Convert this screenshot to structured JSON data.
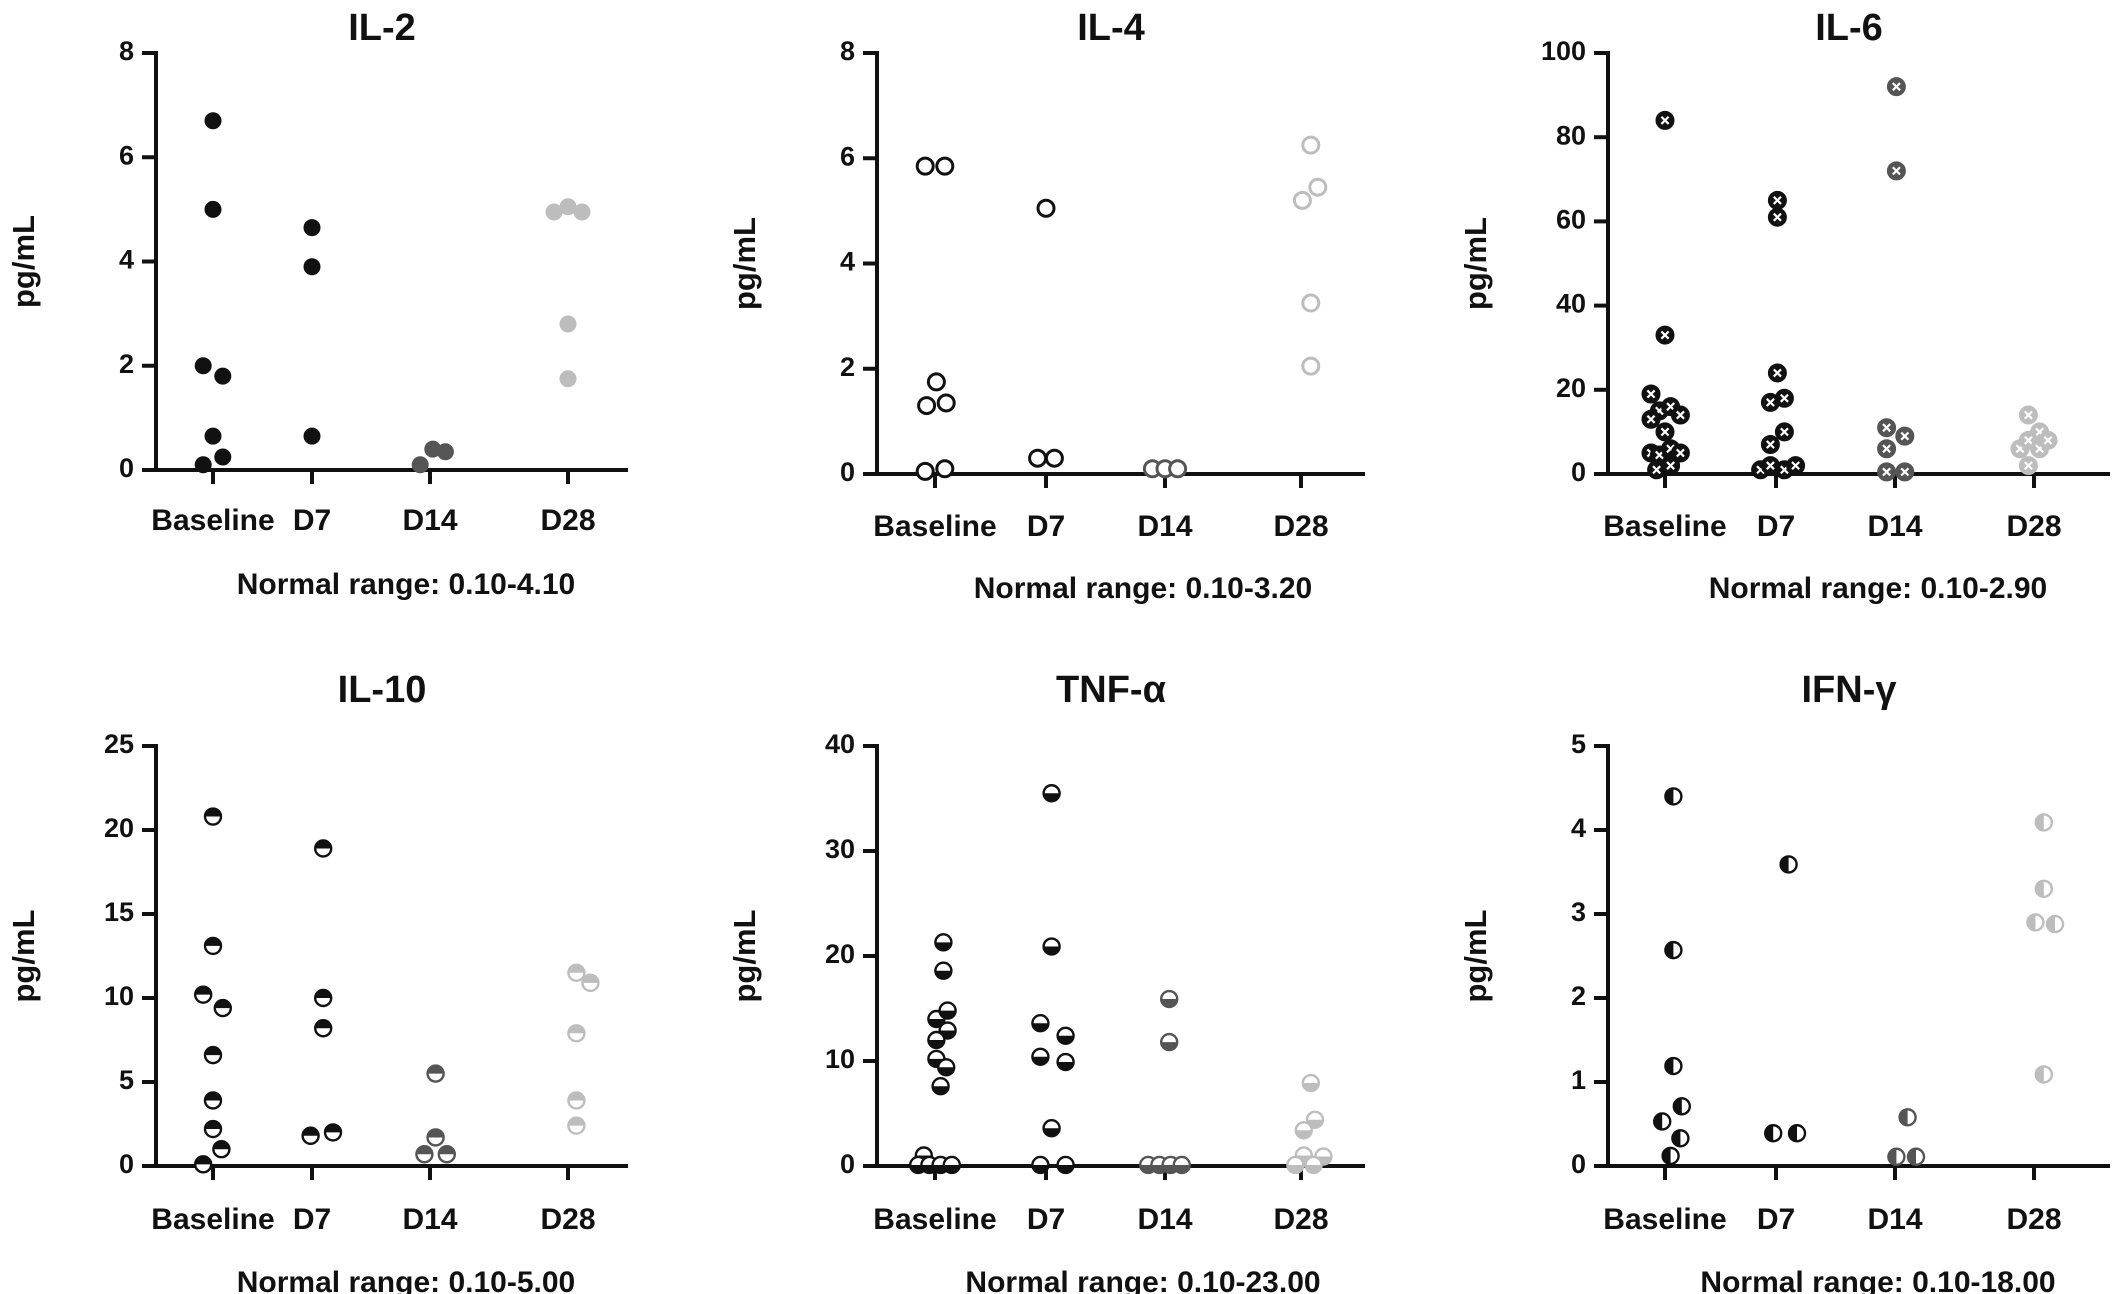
{
  "colors": {
    "Baseline": "#111111",
    "D7": "#111111",
    "D14": "#555555",
    "D28": "#bdbdbd"
  },
  "chart_data": [
    {
      "type": "scatter",
      "title": "IL-2",
      "ylabel": "pg/mL",
      "categories": [
        "Baseline",
        "D7",
        "D14",
        "D28"
      ],
      "ylim": [
        0,
        8
      ],
      "yticks": [
        0,
        2,
        4,
        6,
        8
      ],
      "marker": "filled",
      "note": "Normal range: 0.10-4.10",
      "points": [
        {
          "cat": "Baseline",
          "dx": 0,
          "y": 6.7
        },
        {
          "cat": "Baseline",
          "dx": 0,
          "y": 5.0
        },
        {
          "cat": "Baseline",
          "dx": -0.35,
          "y": 2.0
        },
        {
          "cat": "Baseline",
          "dx": 0.35,
          "y": 1.8
        },
        {
          "cat": "Baseline",
          "dx": 0,
          "y": 0.65
        },
        {
          "cat": "Baseline",
          "dx": 0.35,
          "y": 0.25
        },
        {
          "cat": "Baseline",
          "dx": -0.35,
          "y": 0.1
        },
        {
          "cat": "D7",
          "dx": 0,
          "y": 4.65
        },
        {
          "cat": "D7",
          "dx": 0,
          "y": 3.9
        },
        {
          "cat": "D7",
          "dx": 0,
          "y": 0.65
        },
        {
          "cat": "D14",
          "dx": -0.35,
          "y": 0.1
        },
        {
          "cat": "D14",
          "dx": 0.1,
          "y": 0.4
        },
        {
          "cat": "D14",
          "dx": 0.55,
          "y": 0.35
        },
        {
          "cat": "D28",
          "dx": -0.5,
          "y": 4.95
        },
        {
          "cat": "D28",
          "dx": 0,
          "y": 5.05
        },
        {
          "cat": "D28",
          "dx": 0.5,
          "y": 4.95
        },
        {
          "cat": "D28",
          "dx": 0,
          "y": 2.8
        },
        {
          "cat": "D28",
          "dx": 0,
          "y": 1.75
        }
      ]
    },
    {
      "type": "scatter",
      "title": "IL-4",
      "ylabel": "pg/mL",
      "categories": [
        "Baseline",
        "D7",
        "D14",
        "D28"
      ],
      "ylim": [
        0,
        8
      ],
      "yticks": [
        0,
        2,
        4,
        6,
        8
      ],
      "marker": "open",
      "note": "Normal range: 0.10-3.20",
      "points": [
        {
          "cat": "Baseline",
          "dx": -0.35,
          "y": 5.85
        },
        {
          "cat": "Baseline",
          "dx": 0.35,
          "y": 5.85
        },
        {
          "cat": "Baseline",
          "dx": 0.05,
          "y": 1.75
        },
        {
          "cat": "Baseline",
          "dx": -0.3,
          "y": 1.3
        },
        {
          "cat": "Baseline",
          "dx": 0.4,
          "y": 1.35
        },
        {
          "cat": "Baseline",
          "dx": -0.35,
          "y": 0.05
        },
        {
          "cat": "Baseline",
          "dx": 0.35,
          "y": 0.1
        },
        {
          "cat": "D7",
          "dx": 0,
          "y": 5.05
        },
        {
          "cat": "D7",
          "dx": -0.3,
          "y": 0.3
        },
        {
          "cat": "D7",
          "dx": 0.3,
          "y": 0.3
        },
        {
          "cat": "D14",
          "dx": -0.45,
          "y": 0.1
        },
        {
          "cat": "D14",
          "dx": 0,
          "y": 0.1
        },
        {
          "cat": "D14",
          "dx": 0.45,
          "y": 0.1
        },
        {
          "cat": "D28",
          "dx": 0.35,
          "y": 6.25
        },
        {
          "cat": "D28",
          "dx": 0.05,
          "y": 5.2
        },
        {
          "cat": "D28",
          "dx": 0.6,
          "y": 5.45
        },
        {
          "cat": "D28",
          "dx": 0.35,
          "y": 3.25
        },
        {
          "cat": "D28",
          "dx": 0.35,
          "y": 2.05
        }
      ]
    },
    {
      "type": "scatter",
      "title": "IL-6",
      "ylabel": "pg/mL",
      "categories": [
        "Baseline",
        "D7",
        "D14",
        "D28"
      ],
      "ylim": [
        0,
        100
      ],
      "yticks": [
        0,
        20,
        40,
        60,
        80,
        100
      ],
      "marker": "cross",
      "note": "Normal range: 0.10-2.90",
      "points": [
        {
          "cat": "Baseline",
          "dx": 0,
          "y": 84
        },
        {
          "cat": "Baseline",
          "dx": 0,
          "y": 33
        },
        {
          "cat": "Baseline",
          "dx": -0.5,
          "y": 19
        },
        {
          "cat": "Baseline",
          "dx": -0.2,
          "y": 15
        },
        {
          "cat": "Baseline",
          "dx": 0.2,
          "y": 16
        },
        {
          "cat": "Baseline",
          "dx": 0.55,
          "y": 14
        },
        {
          "cat": "Baseline",
          "dx": -0.5,
          "y": 13
        },
        {
          "cat": "Baseline",
          "dx": 0,
          "y": 10
        },
        {
          "cat": "Baseline",
          "dx": -0.5,
          "y": 5
        },
        {
          "cat": "Baseline",
          "dx": -0.2,
          "y": 4.5
        },
        {
          "cat": "Baseline",
          "dx": 0.2,
          "y": 6
        },
        {
          "cat": "Baseline",
          "dx": 0.55,
          "y": 5
        },
        {
          "cat": "Baseline",
          "dx": -0.3,
          "y": 1
        },
        {
          "cat": "Baseline",
          "dx": 0.2,
          "y": 2
        },
        {
          "cat": "D7",
          "dx": 0.05,
          "y": 65
        },
        {
          "cat": "D7",
          "dx": 0.05,
          "y": 61
        },
        {
          "cat": "D7",
          "dx": 0.05,
          "y": 24
        },
        {
          "cat": "D7",
          "dx": -0.2,
          "y": 17
        },
        {
          "cat": "D7",
          "dx": 0.3,
          "y": 18
        },
        {
          "cat": "D7",
          "dx": 0.3,
          "y": 10
        },
        {
          "cat": "D7",
          "dx": -0.2,
          "y": 7
        },
        {
          "cat": "D7",
          "dx": -0.55,
          "y": 1
        },
        {
          "cat": "D7",
          "dx": -0.2,
          "y": 2
        },
        {
          "cat": "D7",
          "dx": 0.3,
          "y": 1
        },
        {
          "cat": "D7",
          "dx": 0.7,
          "y": 2
        },
        {
          "cat": "D14",
          "dx": 0.05,
          "y": 92
        },
        {
          "cat": "D14",
          "dx": 0.05,
          "y": 72
        },
        {
          "cat": "D14",
          "dx": -0.3,
          "y": 11
        },
        {
          "cat": "D14",
          "dx": 0.35,
          "y": 9
        },
        {
          "cat": "D14",
          "dx": -0.3,
          "y": 6
        },
        {
          "cat": "D14",
          "dx": -0.3,
          "y": 0.5
        },
        {
          "cat": "D14",
          "dx": 0.35,
          "y": 0.5
        },
        {
          "cat": "D28",
          "dx": -0.2,
          "y": 14
        },
        {
          "cat": "D28",
          "dx": 0.2,
          "y": 10
        },
        {
          "cat": "D28",
          "dx": -0.5,
          "y": 6
        },
        {
          "cat": "D28",
          "dx": -0.2,
          "y": 8
        },
        {
          "cat": "D28",
          "dx": 0.2,
          "y": 6
        },
        {
          "cat": "D28",
          "dx": 0.5,
          "y": 8
        },
        {
          "cat": "D28",
          "dx": -0.2,
          "y": 2
        }
      ]
    },
    {
      "type": "scatter",
      "title": "IL-10",
      "ylabel": "pg/mL",
      "categories": [
        "Baseline",
        "D7",
        "D14",
        "D28"
      ],
      "ylim": [
        0,
        25
      ],
      "yticks": [
        0,
        5,
        10,
        15,
        20,
        25
      ],
      "marker": "half-top",
      "note": "Normal range: 0.10-5.00",
      "points": [
        {
          "cat": "Baseline",
          "dx": 0,
          "y": 20.8
        },
        {
          "cat": "Baseline",
          "dx": 0,
          "y": 13.1
        },
        {
          "cat": "Baseline",
          "dx": -0.35,
          "y": 10.2
        },
        {
          "cat": "Baseline",
          "dx": 0.35,
          "y": 9.4
        },
        {
          "cat": "Baseline",
          "dx": 0,
          "y": 6.6
        },
        {
          "cat": "Baseline",
          "dx": 0,
          "y": 3.9
        },
        {
          "cat": "Baseline",
          "dx": 0,
          "y": 2.2
        },
        {
          "cat": "Baseline",
          "dx": 0.3,
          "y": 1.0
        },
        {
          "cat": "Baseline",
          "dx": -0.35,
          "y": 0.1
        },
        {
          "cat": "D7",
          "dx": 0.4,
          "y": 18.9
        },
        {
          "cat": "D7",
          "dx": 0.4,
          "y": 10.0
        },
        {
          "cat": "D7",
          "dx": 0.4,
          "y": 8.2
        },
        {
          "cat": "D7",
          "dx": -0.05,
          "y": 1.8
        },
        {
          "cat": "D7",
          "dx": 0.75,
          "y": 2.0
        },
        {
          "cat": "D14",
          "dx": 0.2,
          "y": 5.5
        },
        {
          "cat": "D14",
          "dx": 0.2,
          "y": 1.7
        },
        {
          "cat": "D14",
          "dx": -0.2,
          "y": 0.7
        },
        {
          "cat": "D14",
          "dx": 0.6,
          "y": 0.7
        },
        {
          "cat": "D28",
          "dx": 0.3,
          "y": 11.5
        },
        {
          "cat": "D28",
          "dx": 0.8,
          "y": 10.9
        },
        {
          "cat": "D28",
          "dx": 0.3,
          "y": 7.9
        },
        {
          "cat": "D28",
          "dx": 0.3,
          "y": 3.9
        },
        {
          "cat": "D28",
          "dx": 0.3,
          "y": 2.4
        }
      ]
    },
    {
      "type": "scatter",
      "title": "TNF-α",
      "ylabel": "pg/mL",
      "categories": [
        "Baseline",
        "D7",
        "D14",
        "D28"
      ],
      "ylim": [
        0,
        40
      ],
      "yticks": [
        0,
        10,
        20,
        30,
        40
      ],
      "marker": "half-bottom",
      "note": "Normal range: 0.10-23.00",
      "points": [
        {
          "cat": "Baseline",
          "dx": 0.3,
          "y": 21.3
        },
        {
          "cat": "Baseline",
          "dx": 0.3,
          "y": 18.6
        },
        {
          "cat": "Baseline",
          "dx": 0.05,
          "y": 14.0
        },
        {
          "cat": "Baseline",
          "dx": 0.45,
          "y": 14.8
        },
        {
          "cat": "Baseline",
          "dx": 0.45,
          "y": 12.9
        },
        {
          "cat": "Baseline",
          "dx": 0.05,
          "y": 12.0
        },
        {
          "cat": "Baseline",
          "dx": 0.05,
          "y": 10.2
        },
        {
          "cat": "Baseline",
          "dx": 0.4,
          "y": 9.4
        },
        {
          "cat": "Baseline",
          "dx": 0.2,
          "y": 7.6
        },
        {
          "cat": "Baseline",
          "dx": -0.4,
          "y": 1.0
        },
        {
          "cat": "Baseline",
          "dx": -0.6,
          "y": 0.1
        },
        {
          "cat": "Baseline",
          "dx": -0.2,
          "y": 0.1
        },
        {
          "cat": "Baseline",
          "dx": 0.2,
          "y": 0.1
        },
        {
          "cat": "Baseline",
          "dx": 0.6,
          "y": 0.1
        },
        {
          "cat": "D7",
          "dx": 0.2,
          "y": 35.5
        },
        {
          "cat": "D7",
          "dx": 0.2,
          "y": 20.9
        },
        {
          "cat": "D7",
          "dx": -0.2,
          "y": 13.6
        },
        {
          "cat": "D7",
          "dx": 0.7,
          "y": 12.4
        },
        {
          "cat": "D7",
          "dx": -0.2,
          "y": 10.4
        },
        {
          "cat": "D7",
          "dx": 0.7,
          "y": 9.9
        },
        {
          "cat": "D7",
          "dx": 0.2,
          "y": 3.6
        },
        {
          "cat": "D7",
          "dx": -0.2,
          "y": 0.1
        },
        {
          "cat": "D7",
          "dx": 0.7,
          "y": 0.1
        },
        {
          "cat": "D14",
          "dx": 0.15,
          "y": 15.9
        },
        {
          "cat": "D14",
          "dx": 0.15,
          "y": 11.8
        },
        {
          "cat": "D14",
          "dx": -0.6,
          "y": 0.1
        },
        {
          "cat": "D14",
          "dx": -0.2,
          "y": 0.1
        },
        {
          "cat": "D14",
          "dx": 0.2,
          "y": 0.1
        },
        {
          "cat": "D14",
          "dx": 0.6,
          "y": 0.1
        },
        {
          "cat": "D28",
          "dx": 0.35,
          "y": 7.9
        },
        {
          "cat": "D28",
          "dx": 0.5,
          "y": 4.4
        },
        {
          "cat": "D28",
          "dx": 0.1,
          "y": 3.4
        },
        {
          "cat": "D28",
          "dx": 0.1,
          "y": 1.0
        },
        {
          "cat": "D28",
          "dx": 0.8,
          "y": 0.9
        },
        {
          "cat": "D28",
          "dx": -0.2,
          "y": 0.1
        },
        {
          "cat": "D28",
          "dx": 0.45,
          "y": 0.1
        }
      ]
    },
    {
      "type": "scatter",
      "title": "IFN-γ",
      "ylabel": "pg/mL",
      "categories": [
        "Baseline",
        "D7",
        "D14",
        "D28"
      ],
      "ylim": [
        0,
        5
      ],
      "yticks": [
        0,
        1,
        2,
        3,
        4,
        5
      ],
      "marker": "half-left",
      "note": "Normal range: 0.10-18.00",
      "points": [
        {
          "cat": "Baseline",
          "dx": 0.3,
          "y": 4.4
        },
        {
          "cat": "Baseline",
          "dx": 0.3,
          "y": 2.57
        },
        {
          "cat": "Baseline",
          "dx": 0.3,
          "y": 1.19
        },
        {
          "cat": "Baseline",
          "dx": 0.6,
          "y": 0.71
        },
        {
          "cat": "Baseline",
          "dx": -0.1,
          "y": 0.53
        },
        {
          "cat": "Baseline",
          "dx": 0.55,
          "y": 0.33
        },
        {
          "cat": "Baseline",
          "dx": 0.2,
          "y": 0.12
        },
        {
          "cat": "D7",
          "dx": 0.45,
          "y": 3.59
        },
        {
          "cat": "D7",
          "dx": -0.1,
          "y": 0.39
        },
        {
          "cat": "D7",
          "dx": 0.75,
          "y": 0.39
        },
        {
          "cat": "D14",
          "dx": 0.45,
          "y": 0.58
        },
        {
          "cat": "D14",
          "dx": 0.05,
          "y": 0.11
        },
        {
          "cat": "D14",
          "dx": 0.75,
          "y": 0.11
        },
        {
          "cat": "D28",
          "dx": 0.35,
          "y": 4.09
        },
        {
          "cat": "D28",
          "dx": 0.35,
          "y": 3.3
        },
        {
          "cat": "D28",
          "dx": 0.05,
          "y": 2.9
        },
        {
          "cat": "D28",
          "dx": 0.75,
          "y": 2.88
        },
        {
          "cat": "D28",
          "dx": 0.35,
          "y": 1.09
        }
      ]
    }
  ]
}
